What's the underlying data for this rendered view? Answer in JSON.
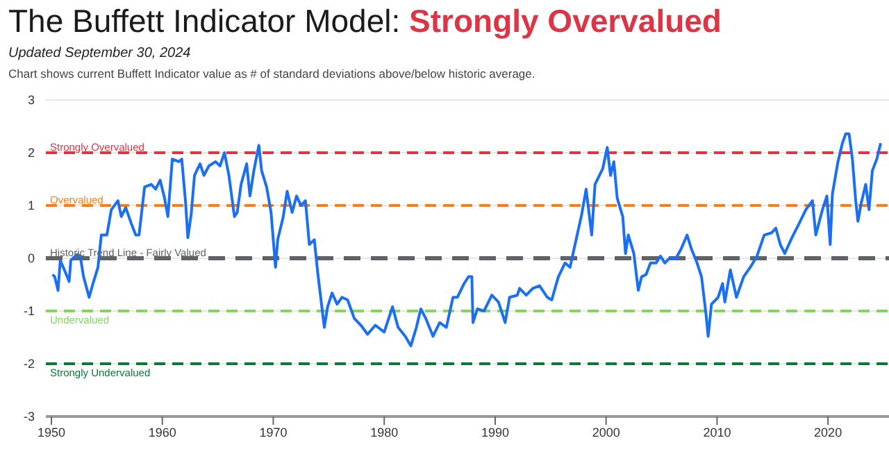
{
  "chart_data": {
    "type": "line",
    "title": "The Buffett Indicator Model: Strongly Overvalued",
    "subtitle": "Updated September 30, 2024",
    "annotations": [
      "Chart shows current Buffett Indicator value as # of standard deviations above/below historic average."
    ],
    "xlim": [
      1949.5,
      2025.5
    ],
    "xticks": [
      1950,
      1960,
      1970,
      1980,
      1990,
      2000,
      2010,
      2020
    ],
    "ylim": [
      -3,
      3
    ],
    "yticks": [
      -3,
      -2,
      -1,
      0,
      1,
      2,
      3
    ],
    "grid": "y",
    "marker": "none",
    "line_style": "solid",
    "ref_lines": [
      {
        "axis": "y",
        "value": 2,
        "label": "Strongly Overvalued",
        "color": "#dc3545",
        "line_style": "dashed"
      },
      {
        "axis": "y",
        "value": 1,
        "label": "Overvalued",
        "color": "#fd7e14",
        "line_style": "dashed"
      },
      {
        "axis": "y",
        "value": 0,
        "label": "Historic Trend Line - Fairly Valued",
        "color": "#5f6368",
        "line_style": "dashed"
      },
      {
        "axis": "y",
        "value": -1,
        "label": "Undervalued",
        "color": "#7ed957",
        "line_style": "dashed"
      },
      {
        "axis": "y",
        "value": -2,
        "label": "Strongly Undervalued",
        "color": "#0a7a3a",
        "line_style": "dashed"
      }
    ],
    "series": [
      {
        "color": "#1a6ff2",
        "x": [
          1950.1,
          1950.3,
          1950.6,
          1950.8,
          1951.25,
          1951.6,
          1951.75,
          1952.3,
          1952.6,
          1952.9,
          1953.4,
          1953.75,
          1954.2,
          1954.5,
          1955,
          1955.4,
          1956,
          1956.3,
          1956.7,
          1957.2,
          1957.6,
          1957.9,
          1958.4,
          1959,
          1959.4,
          1959.8,
          1960.2,
          1960.5,
          1960.9,
          1961.5,
          1961.75,
          1962.1,
          1962.3,
          1962.6,
          1962.9,
          1963.4,
          1963.75,
          1964.2,
          1964.8,
          1965.2,
          1965.6,
          1966,
          1966.5,
          1966.75,
          1967.1,
          1967.6,
          1967.9,
          1968.25,
          1968.7,
          1968.95,
          1969.4,
          1969.8,
          1970.2,
          1970.4,
          1970.9,
          1971.25,
          1971.7,
          1972.1,
          1972.5,
          1972.9,
          1973.25,
          1973.7,
          1974,
          1974.6,
          1974.9,
          1975.3,
          1975.75,
          1976.2,
          1976.7,
          1977.3,
          1977.9,
          1978.5,
          1979.2,
          1980,
          1980.75,
          1981.25,
          1981.9,
          1982.4,
          1982.9,
          1983.3,
          1983.75,
          1984.4,
          1985,
          1985.6,
          1986.2,
          1986.6,
          1987.2,
          1987.6,
          1987.9,
          1988,
          1988.4,
          1989,
          1989.7,
          1990.3,
          1990.9,
          1991.3,
          1992,
          1992.2,
          1992.8,
          1993.4,
          1994,
          1994.7,
          1995.1,
          1995.7,
          1996.3,
          1996.75,
          1997.2,
          1997.8,
          1998.2,
          1998.7,
          1999,
          1999.7,
          2000.1,
          2000.4,
          2000.7,
          2001,
          2001.5,
          2001.75,
          2002,
          2002.5,
          2002.9,
          2003.2,
          2003.6,
          2004,
          2004.5,
          2004.9,
          2005.3,
          2005.7,
          2006.3,
          2006.75,
          2007.3,
          2007.7,
          2008.2,
          2008.6,
          2009,
          2009.2,
          2009.5,
          2010.1,
          2010.5,
          2010.7,
          2011.2,
          2011.75,
          2012.4,
          2013,
          2013.6,
          2014.25,
          2014.9,
          2015.3,
          2015.7,
          2016.1,
          2016.75,
          2017.4,
          2018,
          2018.6,
          2018.9,
          2019.5,
          2019.9,
          2020.2,
          2020.4,
          2020.9,
          2021.3,
          2021.6,
          2021.9,
          2022.2,
          2022.5,
          2022.7,
          2023,
          2023.4,
          2023.7,
          2024,
          2024.4,
          2024.75
        ],
        "values": [
          -0.31,
          -0.35,
          -0.61,
          -0.04,
          -0.26,
          -0.44,
          -0.04,
          0.07,
          0.04,
          -0.35,
          -0.74,
          -0.48,
          -0.17,
          0.44,
          0.44,
          0.92,
          1.09,
          0.79,
          0.96,
          0.66,
          0.44,
          0.44,
          1.35,
          1.4,
          1.31,
          1.48,
          1.14,
          0.79,
          1.88,
          1.83,
          1.88,
          1.05,
          0.39,
          0.83,
          1.57,
          1.79,
          1.57,
          1.75,
          1.83,
          1.75,
          2,
          1.57,
          0.79,
          0.87,
          1.4,
          1.79,
          1.18,
          1.66,
          2.14,
          1.66,
          1.35,
          0.87,
          -0.17,
          0.35,
          0.79,
          1.27,
          0.87,
          1.18,
          1,
          1.09,
          0.26,
          0.35,
          -0.26,
          -1.31,
          -0.92,
          -0.66,
          -0.87,
          -0.74,
          -0.79,
          -1.14,
          -1.27,
          -1.44,
          -1.27,
          -1.4,
          -0.92,
          -1.31,
          -1.48,
          -1.66,
          -1.31,
          -0.96,
          -1.14,
          -1.48,
          -1.22,
          -1.31,
          -0.74,
          -0.74,
          -0.48,
          -0.35,
          -0.35,
          -1.22,
          -0.96,
          -1,
          -0.7,
          -0.83,
          -1.22,
          -0.74,
          -0.7,
          -0.57,
          -0.7,
          -0.57,
          -0.52,
          -0.74,
          -0.79,
          -0.35,
          -0.09,
          -0.17,
          0.26,
          0.83,
          1.31,
          0.44,
          1.4,
          1.7,
          2.1,
          1.57,
          1.83,
          1.14,
          0.79,
          0.09,
          0.44,
          0.09,
          -0.61,
          -0.35,
          -0.31,
          -0.09,
          -0.09,
          0.04,
          -0.09,
          0,
          0,
          0.17,
          0.44,
          0.17,
          -0.09,
          -0.35,
          -1.05,
          -1.48,
          -0.87,
          -0.74,
          -0.48,
          -0.83,
          -0.22,
          -0.74,
          -0.35,
          -0.17,
          0.04,
          0.44,
          0.48,
          0.57,
          0.26,
          0.09,
          0.39,
          0.66,
          0.92,
          1.09,
          0.44,
          0.92,
          1.18,
          0.26,
          1.22,
          1.83,
          2.18,
          2.36,
          2.36,
          1.88,
          1.09,
          0.7,
          1.05,
          1.4,
          0.92,
          1.66,
          1.88,
          2.18
        ]
      }
    ]
  }
}
